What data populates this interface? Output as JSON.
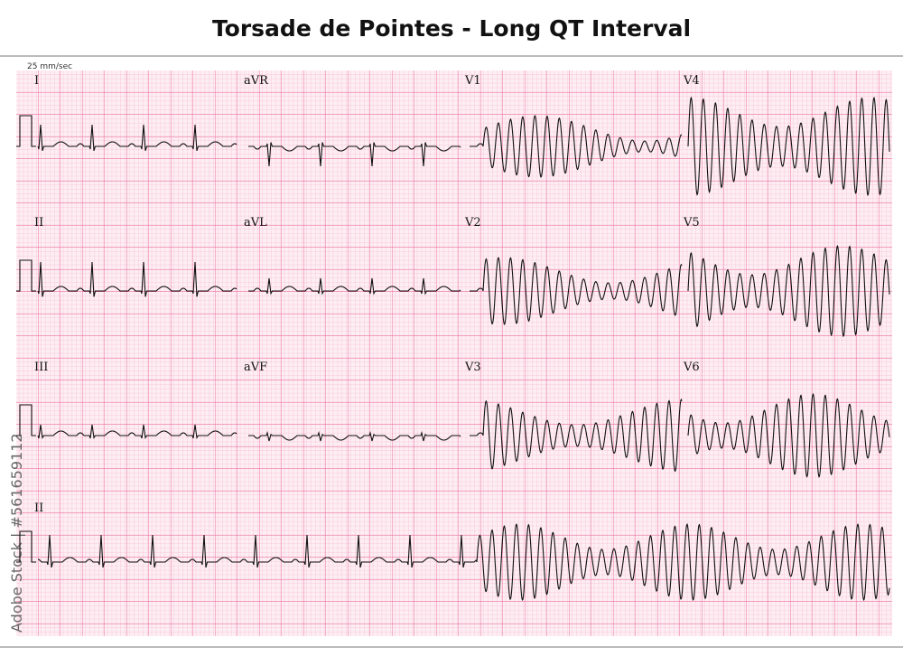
{
  "header": {
    "title": "Torsade de Pointes - Long QT Interval",
    "speed": "25 mm/sec"
  },
  "leads": [
    "I",
    "aVR",
    "V1",
    "V4",
    "II",
    "aVL",
    "V2",
    "V5",
    "III",
    "aVF",
    "V3",
    "V6",
    "II"
  ],
  "watermark": "Adobe Stock | #561659112"
}
